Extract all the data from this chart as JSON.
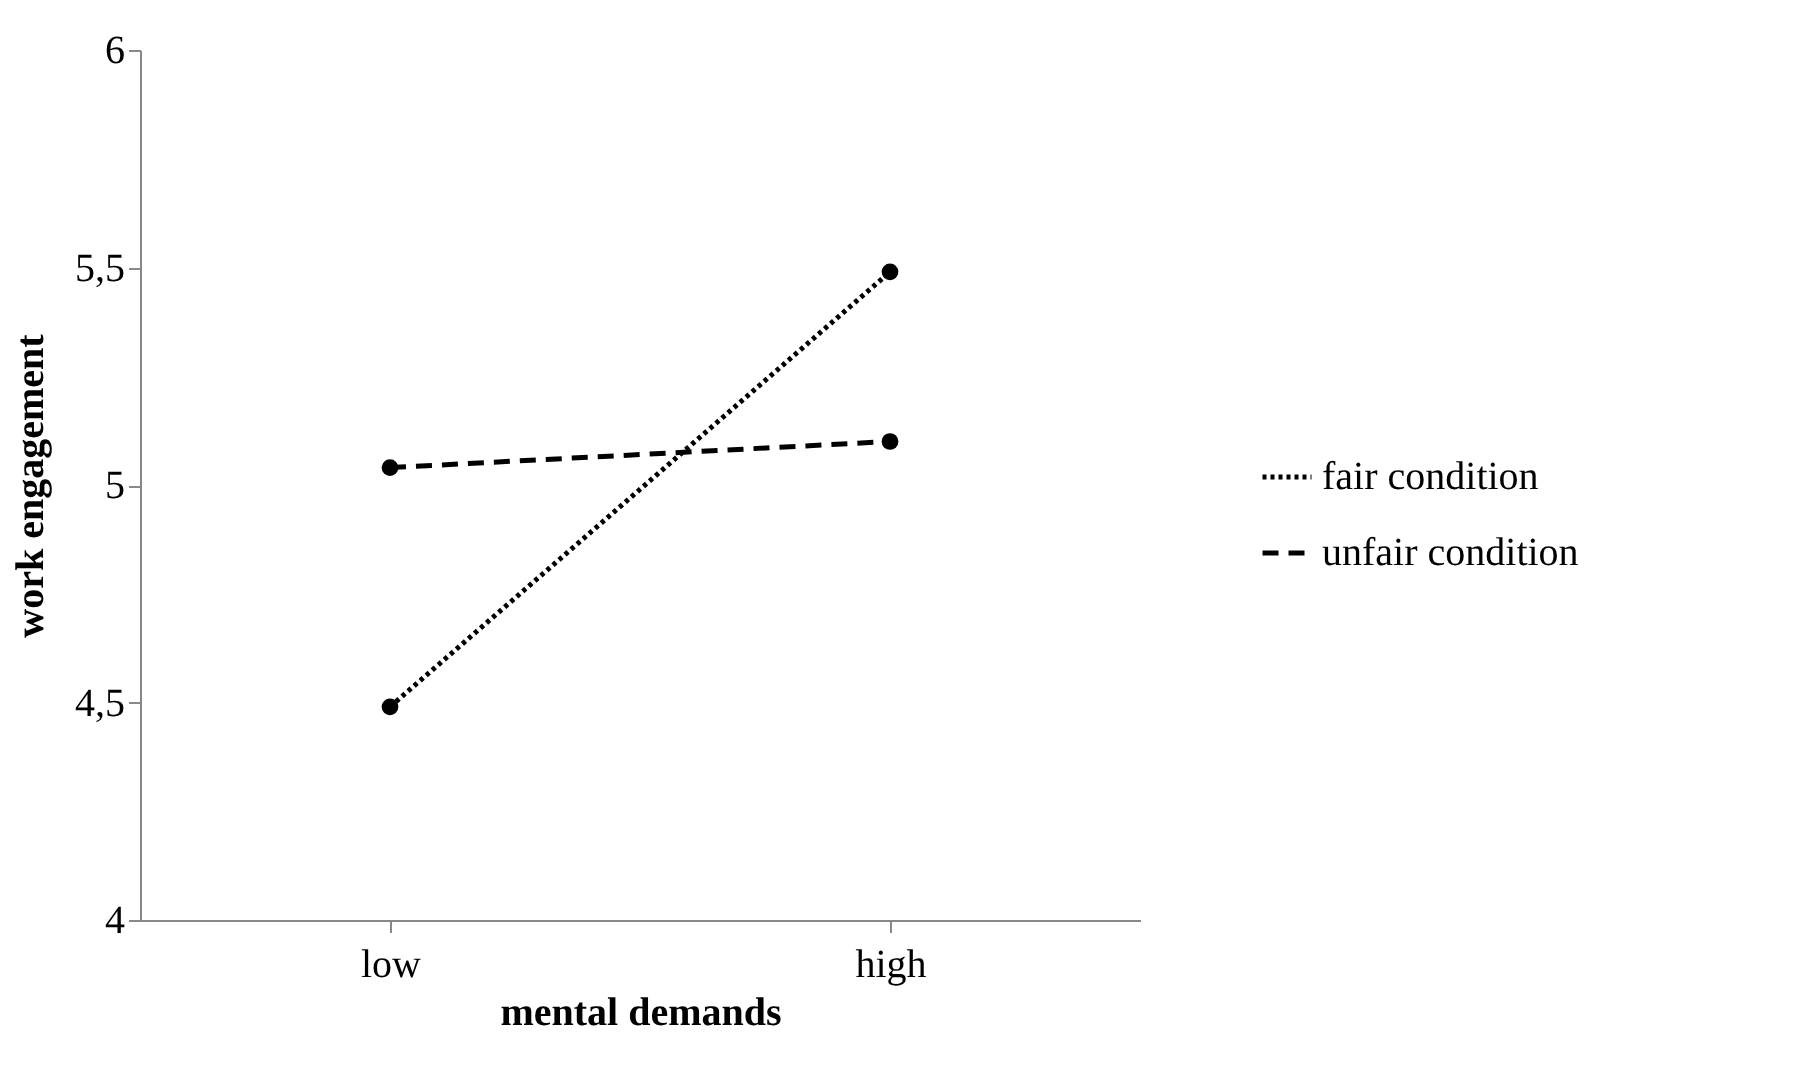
{
  "chart_data": {
    "type": "line",
    "xlabel": "mental demands",
    "ylabel": "work engagement",
    "categories": [
      "low",
      "high"
    ],
    "series": [
      {
        "name": "fair condition",
        "color": "#000000",
        "line_style": "dotted",
        "values": [
          4.49,
          5.49
        ]
      },
      {
        "name": "unfair condition",
        "color": "#000000",
        "line_style": "dashed",
        "values": [
          5.04,
          5.1
        ]
      }
    ],
    "ylim": [
      4,
      6
    ],
    "yticks": [
      4,
      {
        "value": 4.5,
        "label": "4,5"
      },
      5,
      {
        "value": 5.5,
        "label": "5,5"
      },
      6
    ],
    "grid": false,
    "legend": "right",
    "marker": "circle"
  }
}
